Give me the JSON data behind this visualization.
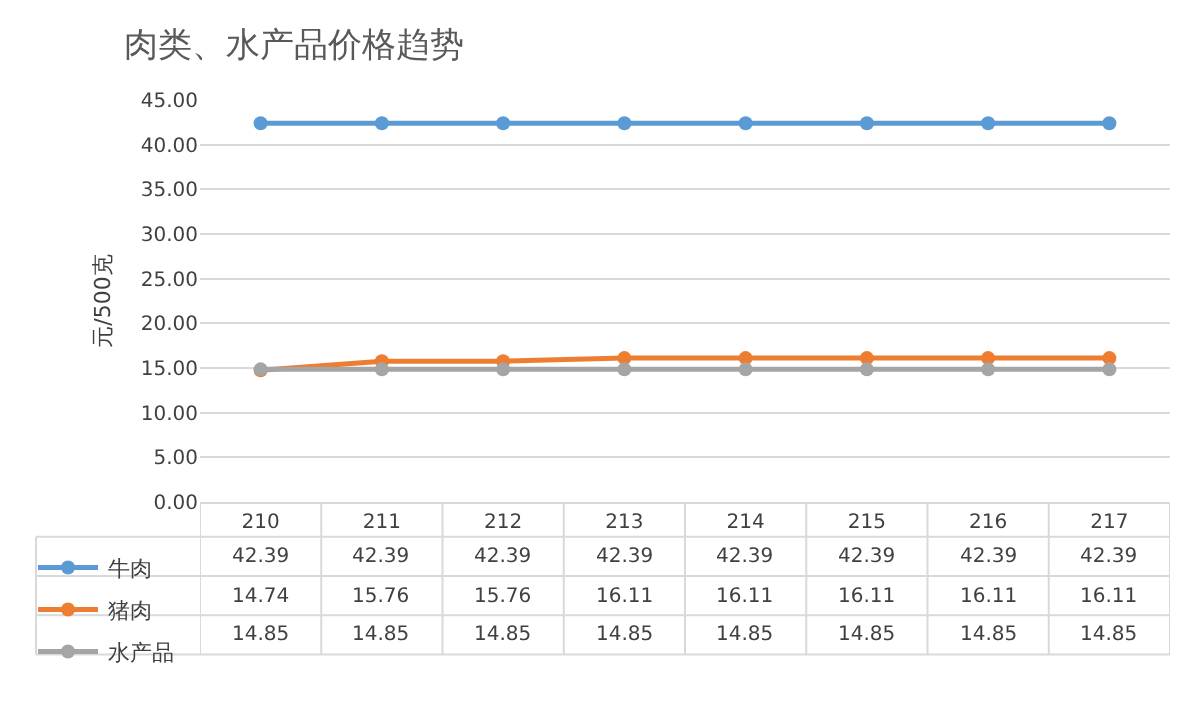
{
  "chart_data": {
    "type": "line",
    "title": "肉类、水产品价格趋势",
    "ylabel": "元/500克",
    "categories": [
      "210",
      "211",
      "212",
      "213",
      "214",
      "215",
      "216",
      "217"
    ],
    "series": [
      {
        "name": "牛肉",
        "color": "#5b9bd5",
        "values": [
          42.39,
          42.39,
          42.39,
          42.39,
          42.39,
          42.39,
          42.39,
          42.39
        ]
      },
      {
        "name": "猪肉",
        "color": "#ed7d31",
        "values": [
          14.74,
          15.76,
          15.76,
          16.11,
          16.11,
          16.11,
          16.11,
          16.11
        ]
      },
      {
        "name": "水产品",
        "color": "#a5a5a5",
        "values": [
          14.85,
          14.85,
          14.85,
          14.85,
          14.85,
          14.85,
          14.85,
          14.85
        ]
      }
    ],
    "ylim": [
      0,
      45
    ],
    "yticks": [
      {
        "value": 0,
        "label": "0.00"
      },
      {
        "value": 5,
        "label": "5.00"
      },
      {
        "value": 10,
        "label": "10.00"
      },
      {
        "value": 15,
        "label": "15.00"
      },
      {
        "value": 20,
        "label": "20.00"
      },
      {
        "value": 25,
        "label": "25.00"
      },
      {
        "value": 30,
        "label": "30.00"
      },
      {
        "value": 35,
        "label": "35.00"
      },
      {
        "value": 40,
        "label": "40.00"
      },
      {
        "value": 45,
        "label": "45.00"
      }
    ],
    "grid": "y",
    "marker": "circle",
    "line_style": "solid",
    "data_labels": true,
    "legend": "bottom"
  }
}
